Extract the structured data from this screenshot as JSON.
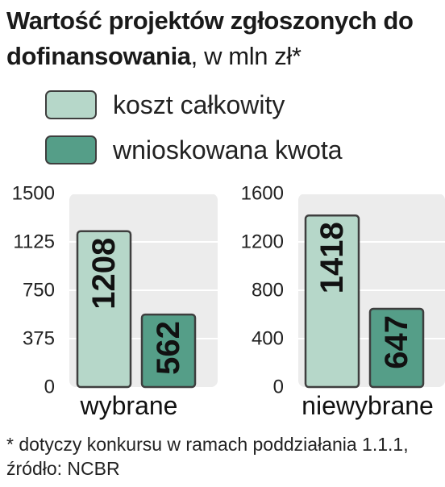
{
  "header": {
    "title_bold": "Wartość projektów zgłoszonych do dofinansowania",
    "title_unit": ", w mln zł*"
  },
  "legend": {
    "items": [
      {
        "label": "koszt  całkowity",
        "color": "#b6d7c9"
      },
      {
        "label": "wnioskowana kwota",
        "color": "#559e88"
      }
    ]
  },
  "colors": {
    "panel_background": "#ececec",
    "bar_outline": "#3e3e3e",
    "gridline": "#ffffff"
  },
  "chart_data": [
    {
      "type": "bar",
      "categories": [
        "wybrane"
      ],
      "series": [
        {
          "name": "koszt  całkowity",
          "values": [
            1208
          ]
        },
        {
          "name": "wnioskowana kwota",
          "values": [
            562
          ]
        }
      ],
      "yticks": [
        "0",
        "375",
        "750",
        "1125",
        "1500"
      ],
      "ylim": [
        0,
        1500
      ],
      "xlabel": "wybrane",
      "grid": true
    },
    {
      "type": "bar",
      "categories": [
        "niewybrane"
      ],
      "series": [
        {
          "name": "koszt  całkowity",
          "values": [
            1418
          ]
        },
        {
          "name": "wnioskowana kwota",
          "values": [
            647
          ]
        }
      ],
      "yticks": [
        "0",
        "400",
        "800",
        "1200",
        "1600"
      ],
      "ylim": [
        0,
        1600
      ],
      "xlabel": "niewybrane",
      "grid": true
    }
  ],
  "footnote": "* dotyczy konkursu w ramach poddziałania 1.1.1, źródło: NCBR"
}
